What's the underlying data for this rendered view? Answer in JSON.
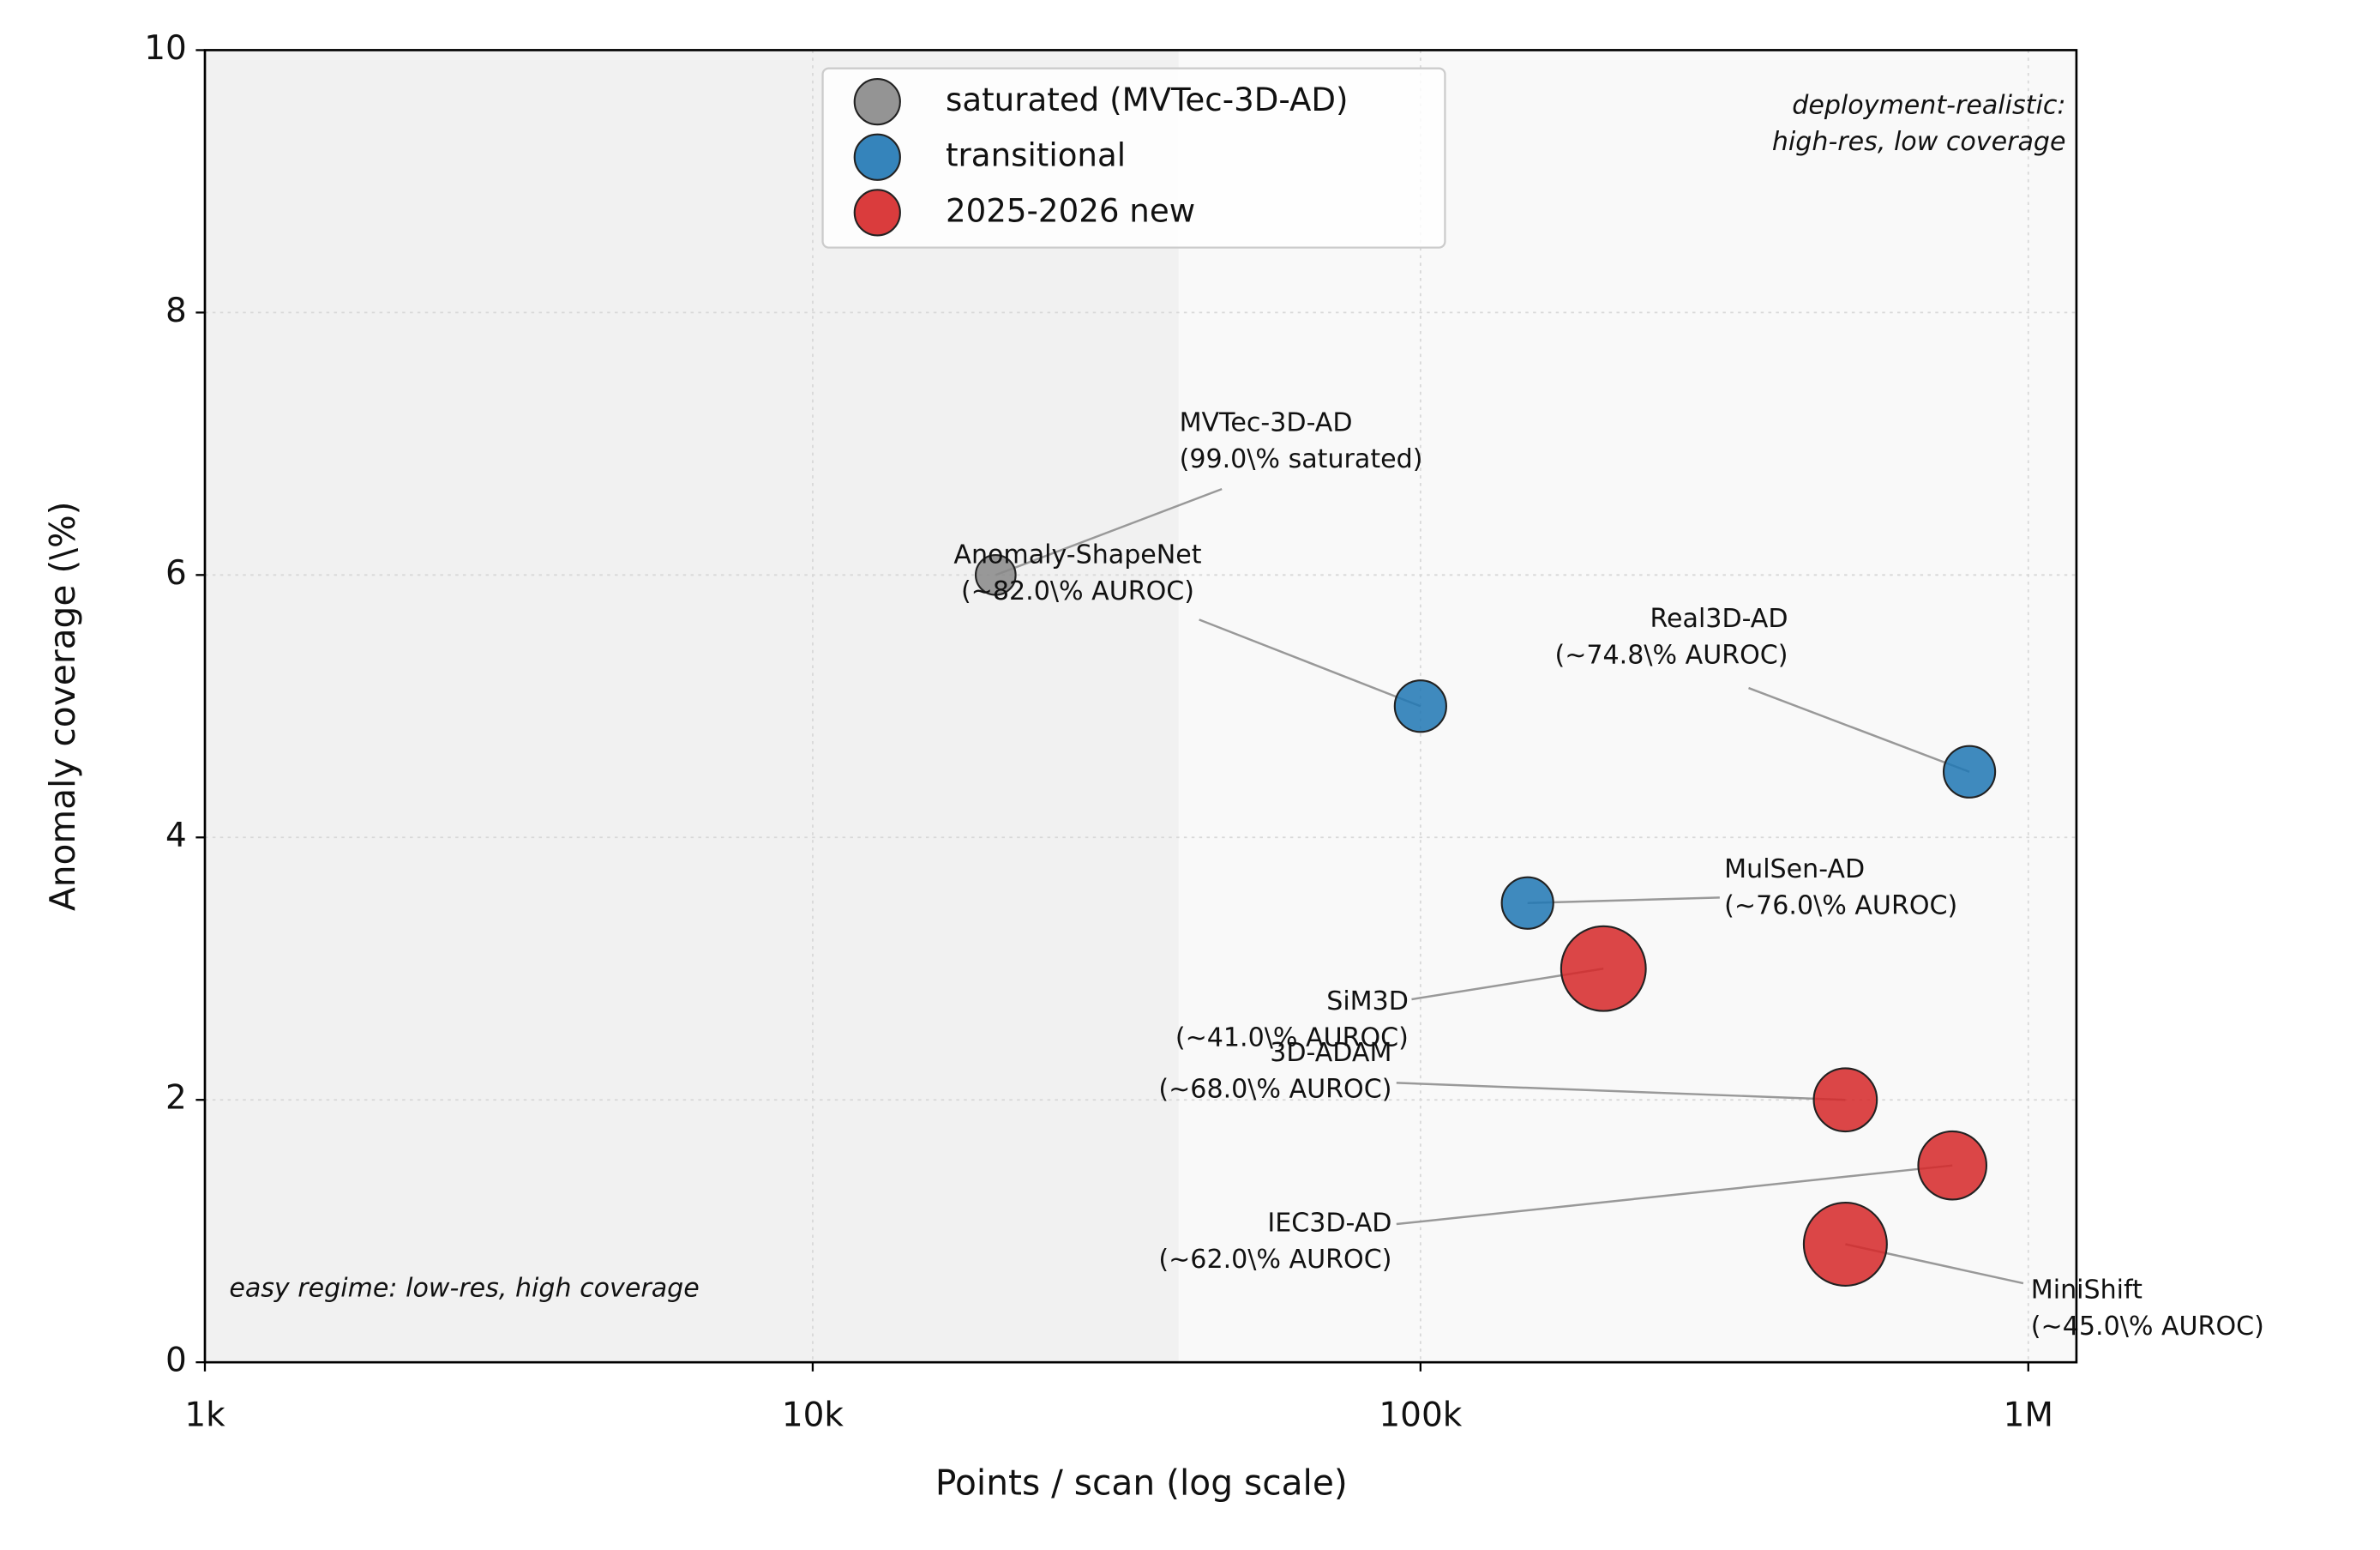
{
  "chart_data": {
    "type": "scatter",
    "xlabel": "Points / scan (log scale)",
    "ylabel": "Anomaly coverage (\\%)",
    "xscale": "log",
    "xlim": [
      1000,
      1200000
    ],
    "ylim": [
      0,
      10
    ],
    "xticks": [
      {
        "value": 1000,
        "label": "1k"
      },
      {
        "value": 10000,
        "label": "10k"
      },
      {
        "value": 100000,
        "label": "100k"
      },
      {
        "value": 1000000,
        "label": "1M"
      }
    ],
    "yticks": [
      0,
      2,
      4,
      6,
      8,
      10
    ],
    "grid": true,
    "legend": "upper center",
    "easy_region_xmax": 40000,
    "series": [
      {
        "name": "saturated (MVTec-3D-AD)",
        "color": "#888888",
        "x": [
          20000
        ],
        "values": [
          6
        ],
        "sizes": [
          120
        ],
        "point_labels": [
          [
            "MVTec-3D-AD",
            "(99.0\\% saturated)"
          ]
        ]
      },
      {
        "name": "transitional",
        "color": "#1f77b4",
        "x": [
          100000,
          800000,
          150000
        ],
        "values": [
          5,
          4.5,
          3.5
        ],
        "sizes": [
          200,
          200,
          200
        ],
        "point_labels": [
          [
            "Anomaly-ShapeNet",
            "(∼82.0\\% AUROC)"
          ],
          [
            "Real3D-AD",
            "(∼74.8\\% AUROC)"
          ],
          [
            "MulSen-AD",
            "(∼76.0\\% AUROC)"
          ]
        ]
      },
      {
        "name": "2025-2026 new",
        "color": "#d62728",
        "x": [
          200000,
          500000,
          750000,
          500000
        ],
        "values": [
          3,
          2,
          1.5,
          0.9
        ],
        "sizes": [
          540,
          300,
          350,
          520
        ],
        "point_labels": [
          [
            "SiM3D",
            "(∼41.0\\% AUROC)"
          ],
          [
            "3D-ADAM",
            "(∼68.0\\% AUROC)"
          ],
          [
            "IEC3D-AD",
            "(∼62.0\\% AUROC)"
          ],
          [
            "MiniShift",
            "(∼45.0\\% AUROC)"
          ]
        ]
      }
    ],
    "notes": {
      "top_right": [
        "deployment-realistic:",
        "high-res, low coverage"
      ],
      "bottom_left": "easy regime: low-res, high coverage"
    }
  }
}
